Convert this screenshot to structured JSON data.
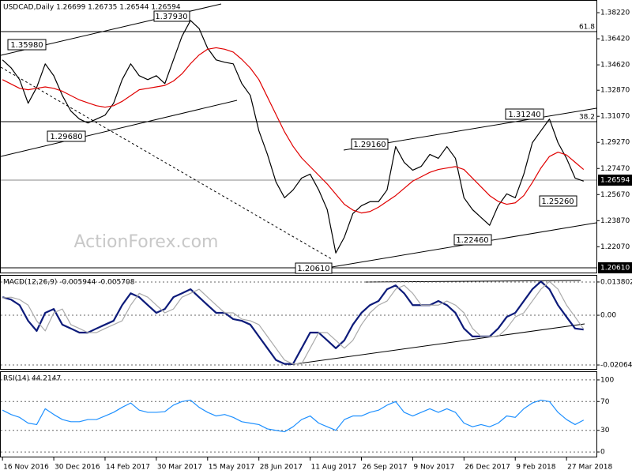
{
  "chart_data": [
    {
      "type": "line",
      "title": "USDCAD,Daily  1.26699 1.26735 1.26544 1.26594",
      "xlim": [
        -0.2,
        69.5
      ],
      "ylim": [
        1.2029,
        1.3904
      ],
      "yticks": [
        {
          "value": 1.3822,
          "label": "1.38220"
        },
        {
          "value": 1.3642,
          "label": "1.36420"
        },
        {
          "value": 1.3462,
          "label": "1.34620"
        },
        {
          "value": 1.3287,
          "label": "1.32870"
        },
        {
          "value": 1.3107,
          "label": "1.31070"
        },
        {
          "value": 1.2927,
          "label": "1.29270"
        },
        {
          "value": 1.2747,
          "label": "1.27470"
        },
        {
          "value": 1.2567,
          "label": "1.25670"
        },
        {
          "value": 1.2387,
          "label": "1.23870"
        },
        {
          "value": 1.2207,
          "label": "1.22070"
        }
      ],
      "grid": false,
      "series": [
        {
          "color": "#000000",
          "values": [
            1.3496,
            1.3442,
            1.336,
            1.3197,
            1.3306,
            1.3469,
            1.3387,
            1.3251,
            1.3143,
            1.3088,
            1.3061,
            1.3088,
            1.3115,
            1.3197,
            1.336,
            1.3469,
            1.3387,
            1.336,
            1.3387,
            1.3333,
            1.3496,
            1.3659,
            1.3768,
            1.3713,
            1.3577,
            1.3496,
            1.348,
            1.3469,
            1.3333,
            1.3251,
            1.3007,
            1.2844,
            1.2654,
            1.2545,
            1.2599,
            1.2681,
            1.2708,
            1.2599,
            1.2463,
            1.2164,
            1.2273,
            1.2436,
            1.249,
            1.2518,
            1.2518,
            1.2599,
            1.2898,
            1.2789,
            1.2735,
            1.2762,
            1.2844,
            1.2817,
            1.2898,
            1.2817,
            1.2545,
            1.2463,
            1.2409,
            1.2355,
            1.249,
            1.2572,
            1.2545,
            1.2708,
            1.2925,
            1.3007,
            1.3088,
            1.2925,
            1.2817,
            1.2681,
            1.26594
          ]
        },
        {
          "color": "#e00000",
          "values": [
            1.336,
            1.333,
            1.33,
            1.329,
            1.33,
            1.331,
            1.33,
            1.328,
            1.325,
            1.322,
            1.32,
            1.318,
            1.317,
            1.318,
            1.321,
            1.325,
            1.329,
            1.33,
            1.331,
            1.332,
            1.335,
            1.34,
            1.347,
            1.353,
            1.357,
            1.358,
            1.357,
            1.355,
            1.35,
            1.344,
            1.336,
            1.324,
            1.312,
            1.3,
            1.29,
            1.282,
            1.276,
            1.27,
            1.264,
            1.257,
            1.25,
            1.246,
            1.244,
            1.245,
            1.248,
            1.252,
            1.256,
            1.261,
            1.266,
            1.269,
            1.272,
            1.274,
            1.275,
            1.276,
            1.274,
            1.268,
            1.262,
            1.256,
            1.252,
            1.25,
            1.251,
            1.256,
            1.265,
            1.275,
            1.283,
            1.286,
            1.284,
            1.279,
            1.274
          ]
        }
      ],
      "annotations": [
        "1.37930",
        "1.35980",
        "1.29680",
        "1.29160",
        "1.31240",
        "1.20610",
        "1.22460",
        "1.25260",
        "61.8",
        "38.2",
        "1.26594",
        "1.20610",
        "ActionForex.com"
      ]
    },
    {
      "type": "line",
      "title": "MACD(12,26,9) -0.005944 -0.005708",
      "xlim": [
        -0.2,
        69.5
      ],
      "ylim": [
        -0.02228,
        0.01641
      ],
      "yticks": [
        0.013802,
        {
          "value": 0,
          "label": "0.00"
        },
        -0.020648
      ],
      "grid": true,
      "series": [
        {
          "color": "#0d1b7a",
          "values": [
            0.0075,
            0.0065,
            0.0042,
            -0.0023,
            -0.0065,
            0.001,
            0.0026,
            -0.0039,
            -0.0055,
            -0.0072,
            -0.0072,
            -0.0055,
            -0.0039,
            -0.0023,
            0.0042,
            0.0091,
            0.0075,
            0.0042,
            0.001,
            0.0026,
            0.0075,
            0.0091,
            0.0108,
            0.0075,
            0.0042,
            0.001,
            0.001,
            -0.0016,
            -0.0023,
            -0.0039,
            -0.0088,
            -0.0137,
            -0.0186,
            -0.0202,
            -0.0202,
            -0.0137,
            -0.0072,
            -0.0072,
            -0.0104,
            -0.0137,
            -0.0104,
            -0.0039,
            0.001,
            0.0042,
            0.0059,
            0.0108,
            0.0124,
            0.0091,
            0.0042,
            0.0042,
            0.0042,
            0.0059,
            0.0042,
            0.001,
            -0.0055,
            -0.0088,
            -0.0088,
            -0.0088,
            -0.0055,
            -0.0007,
            0.001,
            0.0059,
            0.0108,
            0.014,
            0.0108,
            0.0042,
            -0.0007,
            -0.0055,
            -0.005944
          ]
        },
        {
          "color": "#aaaaaa",
          "values": [
            0.0072,
            0.0075,
            0.0065,
            0.0042,
            -0.0023,
            -0.0065,
            0.001,
            0.0026,
            -0.0039,
            -0.0055,
            -0.0072,
            -0.0072,
            -0.0055,
            -0.0039,
            -0.0023,
            0.0042,
            0.0091,
            0.0075,
            0.0042,
            0.001,
            0.0026,
            0.0075,
            0.0091,
            0.0108,
            0.0075,
            0.0042,
            0.001,
            0.001,
            -0.0016,
            -0.0023,
            -0.0039,
            -0.0088,
            -0.0137,
            -0.0186,
            -0.0202,
            -0.0202,
            -0.0137,
            -0.0072,
            -0.0072,
            -0.0104,
            -0.0137,
            -0.0104,
            -0.0039,
            0.001,
            0.0042,
            0.0059,
            0.0108,
            0.0124,
            0.0091,
            0.0042,
            0.0042,
            0.0042,
            0.0059,
            0.0042,
            0.001,
            -0.0055,
            -0.0088,
            -0.0088,
            -0.0088,
            -0.0055,
            -0.0007,
            0.001,
            0.0059,
            0.0108,
            0.014,
            0.0108,
            0.0042,
            -0.0007,
            -0.005708
          ]
        }
      ]
    },
    {
      "type": "line",
      "title": "RSI(14) 44.2147",
      "xlim": [
        -0.2,
        69.5
      ],
      "ylim": [
        -6.5,
        110.9
      ],
      "yticks": [
        100,
        70,
        30,
        0
      ],
      "grid": true,
      "xticks": [
        {
          "value": 0,
          "label": "16 Nov 2016"
        },
        {
          "value": 6,
          "label": "30 Dec 2016"
        },
        {
          "value": 12,
          "label": "14 Feb 2017"
        },
        {
          "value": 18,
          "label": "30 Mar 2017"
        },
        {
          "value": 24,
          "label": "15 May 2017"
        },
        {
          "value": 30,
          "label": "28 Jun 2017"
        },
        {
          "value": 36,
          "label": "11 Aug 2017"
        },
        {
          "value": 42,
          "label": "26 Sep 2017"
        },
        {
          "value": 48,
          "label": "9 Nov 2017"
        },
        {
          "value": 54,
          "label": "26 Dec 2017"
        },
        {
          "value": 60,
          "label": "9 Feb 2018"
        },
        {
          "value": 66,
          "label": "27 Mar 2018"
        }
      ],
      "series": [
        {
          "color": "#1e90ff",
          "values": [
            58,
            52,
            48,
            40,
            38,
            60,
            52,
            45,
            42,
            42,
            45,
            45,
            50,
            55,
            62,
            68,
            58,
            55,
            55,
            56,
            65,
            70,
            72,
            62,
            55,
            50,
            52,
            48,
            42,
            40,
            38,
            32,
            30,
            28,
            35,
            45,
            50,
            40,
            35,
            30,
            45,
            50,
            50,
            55,
            58,
            65,
            70,
            55,
            50,
            55,
            60,
            55,
            60,
            55,
            40,
            35,
            38,
            35,
            40,
            50,
            48,
            60,
            68,
            72,
            70,
            55,
            45,
            38,
            44.2147
          ]
        }
      ]
    }
  ]
}
